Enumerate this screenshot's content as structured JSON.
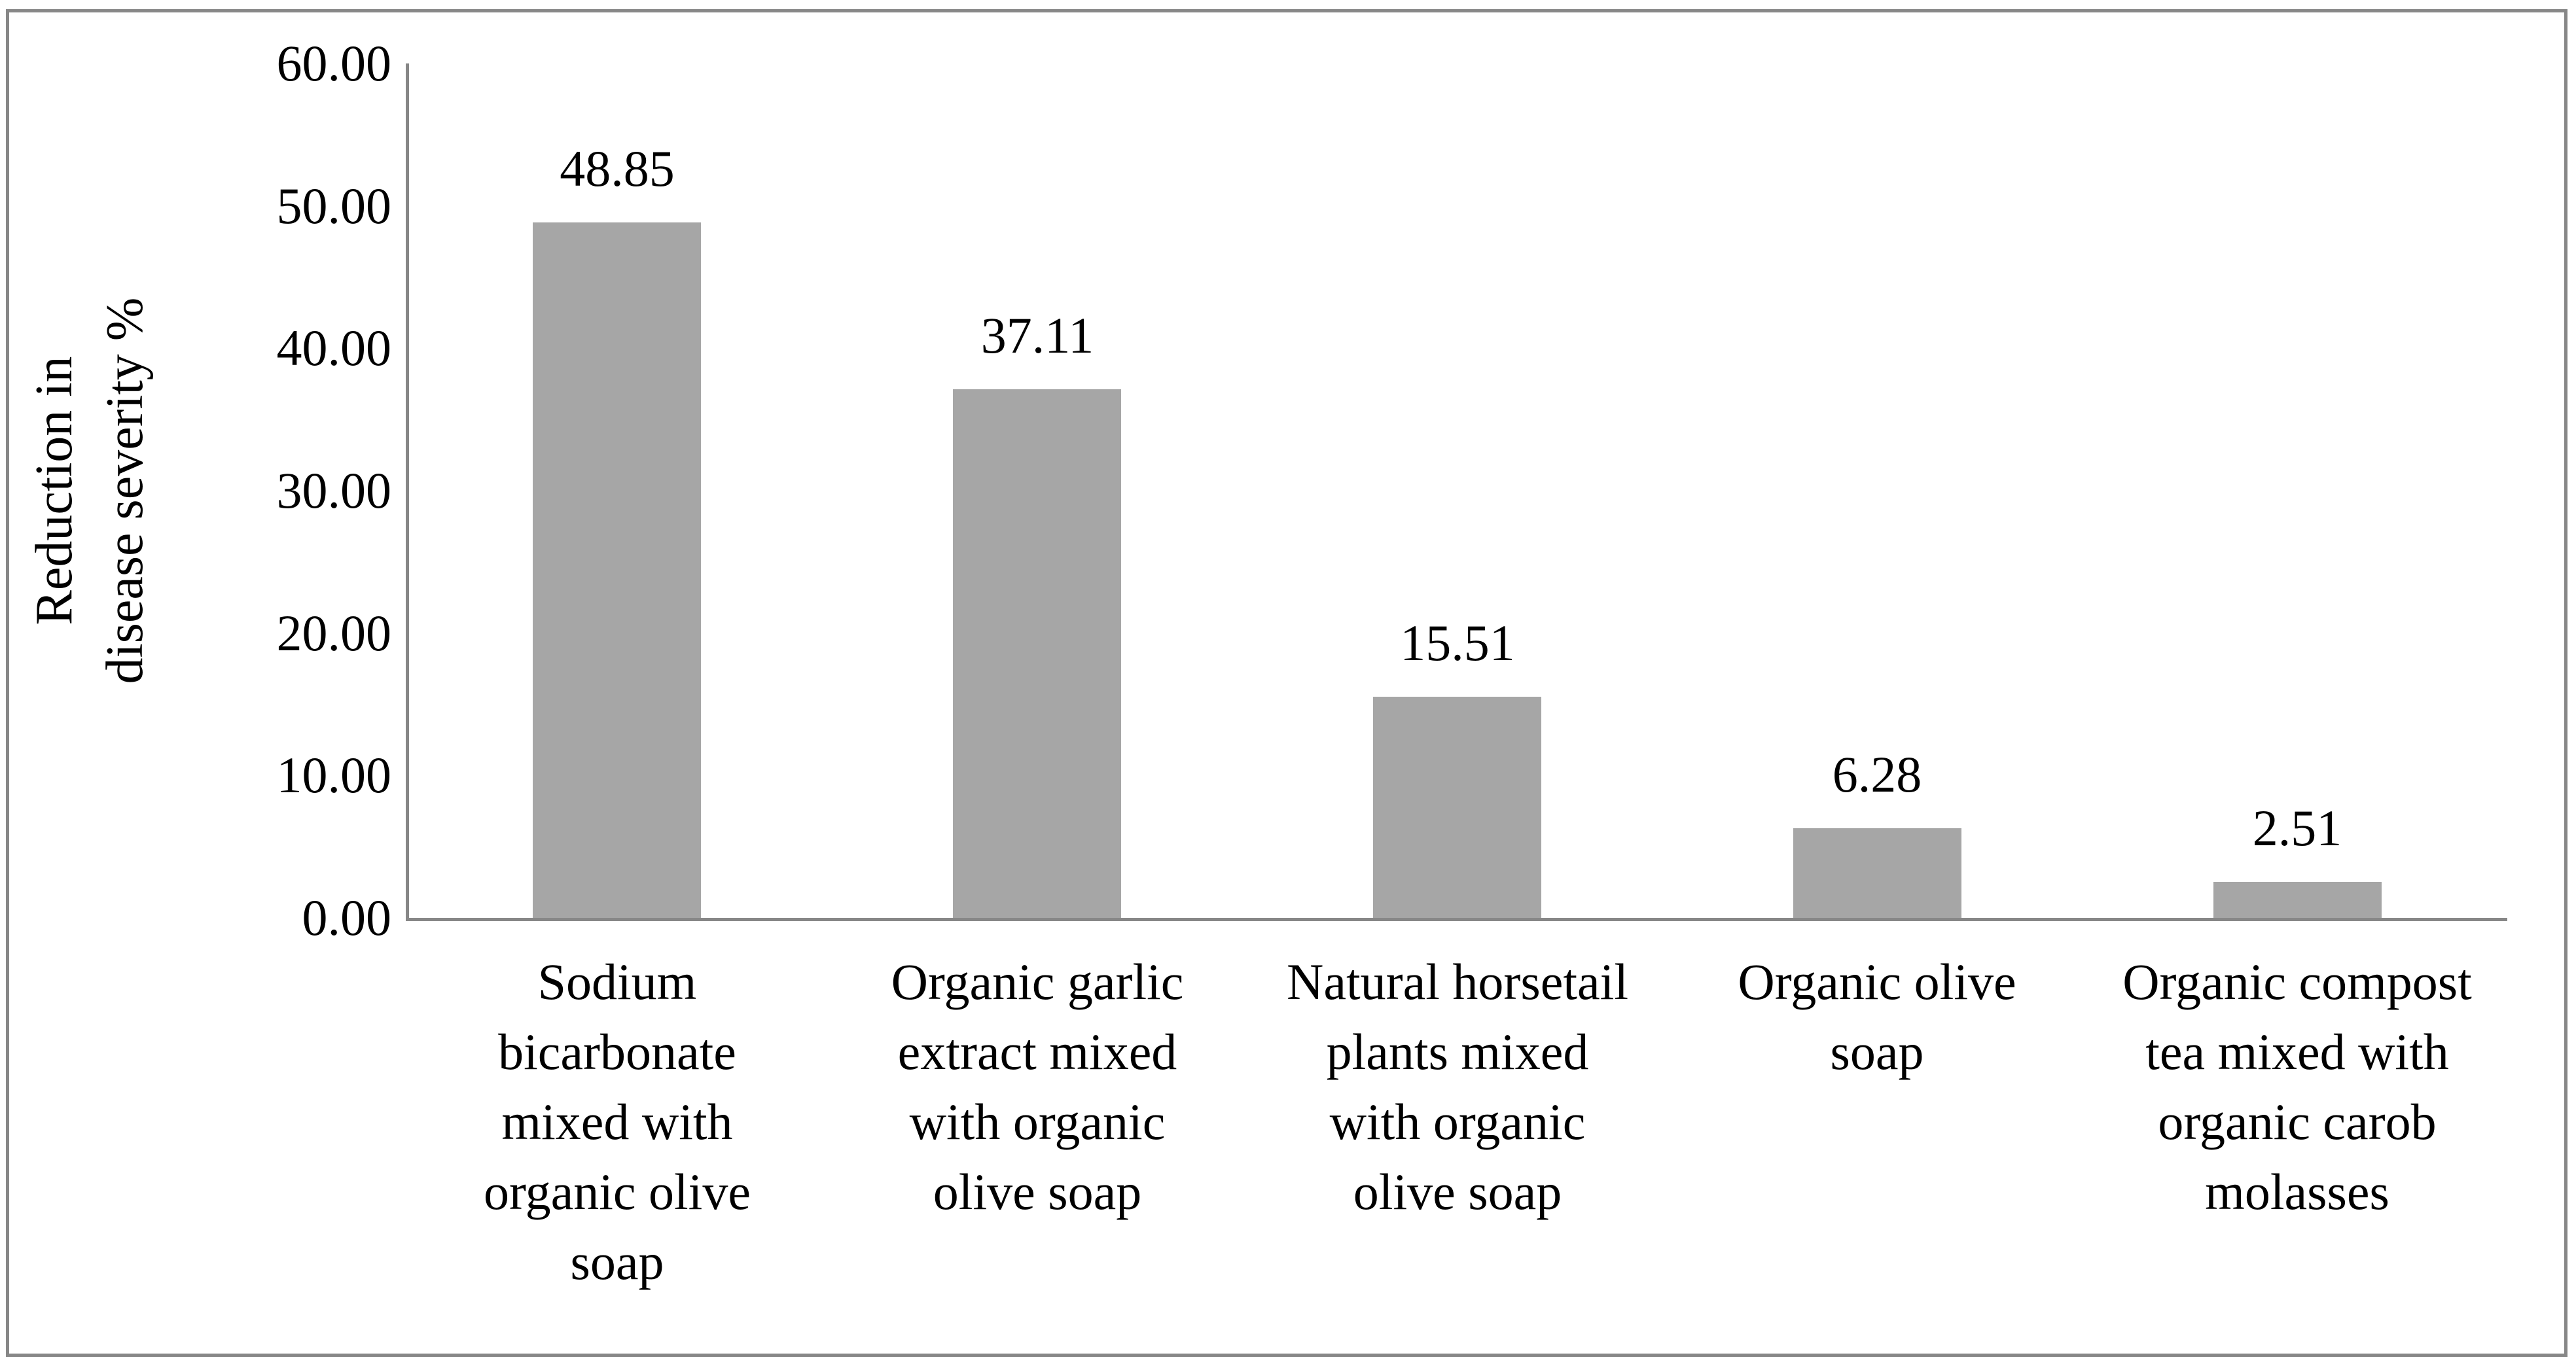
{
  "figure": {
    "background_color": "#ffffff",
    "border_color": "#878787"
  },
  "chart_data": {
    "type": "bar",
    "title": "",
    "xlabel": "",
    "ylabel": "Reduction in\ndisease severity %",
    "categories": [
      "Sodium\nbicarbonate\nmixed with\norganic olive\nsoap",
      "Organic garlic\nextract mixed\nwith organic\nolive soap",
      "Natural horsetail\nplants mixed\nwith organic\nolive soap",
      "Organic olive\nsoap",
      "Organic compost\ntea mixed with\norganic carob\nmolasses"
    ],
    "values": [
      48.85,
      37.11,
      15.51,
      6.28,
      2.51
    ],
    "data_labels": [
      "48.85",
      "37.11",
      "15.51",
      "6.28",
      "2.51"
    ],
    "ytick_labels": [
      "0.00",
      "10.00",
      "20.00",
      "30.00",
      "40.00",
      "50.00",
      "60.00"
    ],
    "ytick_values": [
      0,
      10,
      20,
      30,
      40,
      50,
      60
    ],
    "ylim": [
      0,
      60
    ],
    "grid": false,
    "legend_position": "none",
    "bar_color": "#a6a6a6",
    "axis_color": "#878787",
    "text_color": "#000000"
  }
}
